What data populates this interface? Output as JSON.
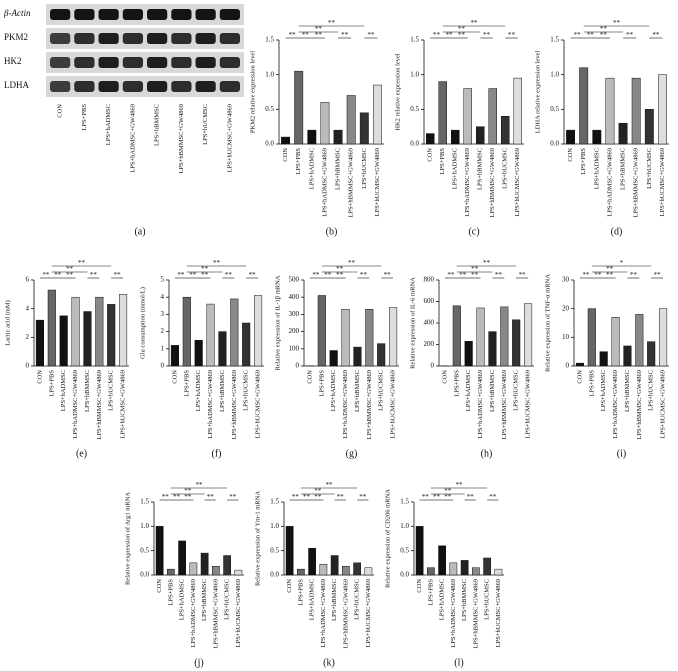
{
  "blot": {
    "panel": "(a)",
    "rows": [
      "β-Actin",
      "PKM2",
      "HK2",
      "LDHA"
    ],
    "lanes": [
      "CON",
      "LPS+PBS",
      "LPS+hADMSC",
      "LPS+hADMSC+GW4869",
      "LPS+hBMMSC",
      "LPS+hBMMSC+GW4869",
      "LPS+hUCMSC",
      "LPS+hUCMSC+GW4869"
    ]
  },
  "chart_data": [
    {
      "type": "bar",
      "panel": "(b)",
      "y_label": "PKM2 relative expression level",
      "categories": [
        "CON",
        "LPS+PBS",
        "LPS+hADMSC",
        "LPS+hADMSC+GW4869",
        "LPS+hBMMSC",
        "LPS+hBMMSC+GW4869",
        "LPS+hUCMSC",
        "LPS+hUCMSC+GW4869"
      ],
      "values": [
        0.1,
        1.05,
        0.2,
        0.6,
        0.2,
        0.7,
        0.45,
        0.85
      ],
      "colors": [
        "#111111",
        "#666666",
        "#111111",
        "#bbbbbb",
        "#222222",
        "#888888",
        "#333333",
        "#dddddd"
      ],
      "ylim": [
        0,
        1.5
      ],
      "yticks": [
        {
          "value": 0,
          "label": "0.0"
        },
        0.5,
        {
          "value": 1,
          "label": "1.0"
        },
        1.5
      ],
      "brackets": [
        {
          "from": 0,
          "to": 1,
          "label": "**"
        },
        {
          "from": 1,
          "to": 2,
          "label": "**"
        },
        {
          "from": 2,
          "to": 3,
          "label": "**"
        },
        {
          "from": 1,
          "to": 4,
          "label": "**"
        },
        {
          "from": 4,
          "to": 5,
          "label": "**"
        },
        {
          "from": 1,
          "to": 6,
          "label": "**"
        },
        {
          "from": 6,
          "to": 7,
          "label": "**"
        }
      ]
    },
    {
      "type": "bar",
      "panel": "(c)",
      "y_label": "HK2 relative expression level",
      "categories": [
        "CON",
        "LPS+PBS",
        "LPS+hADMSC",
        "LPS+hADMSC+GW4869",
        "LPS+hBMMSC",
        "LPS+hBMMSC+GW4869",
        "LPS+hUCMSC",
        "LPS+hUCMSC+GW4869"
      ],
      "values": [
        0.15,
        0.9,
        0.2,
        0.8,
        0.25,
        0.8,
        0.4,
        0.95
      ],
      "colors": [
        "#111111",
        "#666666",
        "#111111",
        "#bbbbbb",
        "#222222",
        "#888888",
        "#333333",
        "#dddddd"
      ],
      "ylim": [
        0,
        1.5
      ],
      "yticks": [
        {
          "value": 0,
          "label": "0.0"
        },
        0.5,
        {
          "value": 1,
          "label": "1.0"
        },
        1.5
      ],
      "brackets": [
        {
          "from": 0,
          "to": 1,
          "label": "**"
        },
        {
          "from": 1,
          "to": 2,
          "label": "**"
        },
        {
          "from": 2,
          "to": 3,
          "label": "**"
        },
        {
          "from": 1,
          "to": 4,
          "label": "**"
        },
        {
          "from": 4,
          "to": 5,
          "label": "**"
        },
        {
          "from": 1,
          "to": 6,
          "label": "**"
        },
        {
          "from": 6,
          "to": 7,
          "label": "**"
        }
      ]
    },
    {
      "type": "bar",
      "panel": "(d)",
      "y_label": "LDHA relative expression level",
      "categories": [
        "CON",
        "LPS+PBS",
        "LPS+hADMSC",
        "LPS+hADMSC+GW4869",
        "LPS+hBMMSC",
        "LPS+hBMMSC+GW4869",
        "LPS+hUCMSC",
        "LPS+hUCMSC+GW4869"
      ],
      "values": [
        0.2,
        1.1,
        0.2,
        0.95,
        0.3,
        0.95,
        0.5,
        1.0
      ],
      "colors": [
        "#111111",
        "#666666",
        "#111111",
        "#bbbbbb",
        "#222222",
        "#888888",
        "#333333",
        "#dddddd"
      ],
      "ylim": [
        0,
        1.5
      ],
      "yticks": [
        {
          "value": 0,
          "label": "0.0"
        },
        0.5,
        {
          "value": 1,
          "label": "1.0"
        },
        1.5
      ],
      "brackets": [
        {
          "from": 0,
          "to": 1,
          "label": "**"
        },
        {
          "from": 1,
          "to": 2,
          "label": "**"
        },
        {
          "from": 2,
          "to": 3,
          "label": "**"
        },
        {
          "from": 1,
          "to": 4,
          "label": "**"
        },
        {
          "from": 4,
          "to": 5,
          "label": "**"
        },
        {
          "from": 1,
          "to": 6,
          "label": "**"
        },
        {
          "from": 6,
          "to": 7,
          "label": "**"
        }
      ]
    },
    {
      "type": "bar",
      "panel": "(e)",
      "y_label": "Lactic acid (mM)",
      "categories": [
        "CON",
        "LPS+PBS",
        "LPS+hADMSC",
        "LPS+hADMSC+GW4869",
        "LPS+hBMMSC",
        "LPS+hBMMSC+GW4869",
        "LPS+hUCMSC",
        "LPS+hUCMSC+GW4869"
      ],
      "values": [
        3.2,
        5.3,
        3.5,
        4.8,
        3.8,
        4.8,
        4.3,
        5.0
      ],
      "colors": [
        "#111111",
        "#666666",
        "#111111",
        "#bbbbbb",
        "#222222",
        "#888888",
        "#333333",
        "#dddddd"
      ],
      "ylim": [
        0,
        6
      ],
      "yticks": [
        0,
        2,
        4,
        6
      ],
      "brackets": [
        {
          "from": 0,
          "to": 1,
          "label": "**"
        },
        {
          "from": 1,
          "to": 2,
          "label": "**"
        },
        {
          "from": 2,
          "to": 3,
          "label": "**"
        },
        {
          "from": 1,
          "to": 4,
          "label": "**"
        },
        {
          "from": 4,
          "to": 5,
          "label": "**"
        },
        {
          "from": 1,
          "to": 6,
          "label": "**"
        },
        {
          "from": 6,
          "to": 7,
          "label": "**"
        }
      ]
    },
    {
      "type": "bar",
      "panel": "(f)",
      "y_label": "Glu consumption (mmol/L)",
      "categories": [
        "CON",
        "LPS+PBS",
        "LPS+hADMSC",
        "LPS+hADMSC+GW4869",
        "LPS+hBMMSC",
        "LPS+hBMMSC+GW4869",
        "LPS+hUCMSC",
        "LPS+hUCMSC+GW4869"
      ],
      "values": [
        1.2,
        4.0,
        1.5,
        3.6,
        2.0,
        3.9,
        2.5,
        4.1
      ],
      "colors": [
        "#111111",
        "#666666",
        "#111111",
        "#bbbbbb",
        "#222222",
        "#888888",
        "#333333",
        "#dddddd"
      ],
      "ylim": [
        0,
        5
      ],
      "yticks": [
        0,
        1,
        2,
        3,
        4,
        5
      ],
      "brackets": [
        {
          "from": 0,
          "to": 1,
          "label": "**"
        },
        {
          "from": 1,
          "to": 2,
          "label": "**"
        },
        {
          "from": 2,
          "to": 3,
          "label": "**"
        },
        {
          "from": 1,
          "to": 4,
          "label": "**"
        },
        {
          "from": 4,
          "to": 5,
          "label": "**"
        },
        {
          "from": 1,
          "to": 6,
          "label": "**"
        },
        {
          "from": 6,
          "to": 7,
          "label": "**"
        }
      ]
    },
    {
      "type": "bar",
      "panel": "(g)",
      "y_label": "Relative expression of IL-1β mRNA",
      "categories": [
        "CON",
        "LPS+PBS",
        "LPS+hADMSC",
        "LPS+hADMSC+GW4869",
        "LPS+hBMMSC",
        "LPS+hBMMSC+GW4869",
        "LPS+hUCMSC",
        "LPS+hUCMSC+GW4869"
      ],
      "values": [
        1,
        410,
        90,
        330,
        110,
        330,
        130,
        340
      ],
      "colors": [
        "#111111",
        "#666666",
        "#111111",
        "#bbbbbb",
        "#222222",
        "#888888",
        "#333333",
        "#dddddd"
      ],
      "ylim": [
        0,
        500
      ],
      "yticks": [
        0,
        100,
        200,
        300,
        400,
        500
      ],
      "brackets": [
        {
          "from": 0,
          "to": 1,
          "label": "**"
        },
        {
          "from": 1,
          "to": 2,
          "label": "**"
        },
        {
          "from": 2,
          "to": 3,
          "label": "**"
        },
        {
          "from": 1,
          "to": 4,
          "label": "**"
        },
        {
          "from": 4,
          "to": 5,
          "label": "**"
        },
        {
          "from": 1,
          "to": 6,
          "label": "**"
        },
        {
          "from": 6,
          "to": 7,
          "label": "**"
        }
      ]
    },
    {
      "type": "bar",
      "panel": "(h)",
      "y_label": "Relative expression of IL-6 mRNA",
      "categories": [
        "CON",
        "LPS+PBS",
        "LPS+hADMSC",
        "LPS+hADMSC+GW4869",
        "LPS+hBMMSC",
        "LPS+hBMMSC+GW4869",
        "LPS+hUCMSC",
        "LPS+hUCMSC+GW4869"
      ],
      "values": [
        1,
        560,
        230,
        540,
        320,
        550,
        430,
        580
      ],
      "colors": [
        "#111111",
        "#666666",
        "#111111",
        "#bbbbbb",
        "#222222",
        "#888888",
        "#333333",
        "#dddddd"
      ],
      "ylim": [
        0,
        800
      ],
      "yticks": [
        0,
        200,
        400,
        600,
        800
      ],
      "brackets": [
        {
          "from": 0,
          "to": 1,
          "label": "**"
        },
        {
          "from": 1,
          "to": 2,
          "label": "**"
        },
        {
          "from": 2,
          "to": 3,
          "label": "**"
        },
        {
          "from": 1,
          "to": 4,
          "label": "**"
        },
        {
          "from": 4,
          "to": 5,
          "label": "**"
        },
        {
          "from": 1,
          "to": 6,
          "label": "**"
        },
        {
          "from": 6,
          "to": 7,
          "label": "**"
        }
      ]
    },
    {
      "type": "bar",
      "panel": "(i)",
      "y_label": "Relative expression of TNF-α mRNA",
      "categories": [
        "CON",
        "LPS+PBS",
        "LPS+hADMSC",
        "LPS+hADMSC+GW4869",
        "LPS+hBMMSC",
        "LPS+hBMMSC+GW4869",
        "LPS+hUCMSC",
        "LPS+hUCMSC+GW4869"
      ],
      "values": [
        1,
        20,
        5,
        17,
        7,
        18,
        8.5,
        20
      ],
      "colors": [
        "#111111",
        "#666666",
        "#111111",
        "#bbbbbb",
        "#222222",
        "#888888",
        "#333333",
        "#dddddd"
      ],
      "ylim": [
        0,
        30
      ],
      "yticks": [
        0,
        10,
        20,
        30
      ],
      "brackets": [
        {
          "from": 0,
          "to": 1,
          "label": "**"
        },
        {
          "from": 1,
          "to": 2,
          "label": "**"
        },
        {
          "from": 2,
          "to": 3,
          "label": "**"
        },
        {
          "from": 1,
          "to": 4,
          "label": "**"
        },
        {
          "from": 4,
          "to": 5,
          "label": "**"
        },
        {
          "from": 1,
          "to": 6,
          "label": "*"
        },
        {
          "from": 6,
          "to": 7,
          "label": "**"
        }
      ]
    },
    {
      "type": "bar",
      "panel": "(j)",
      "y_label": "Relative expression of Arg1 mRNA",
      "categories": [
        "CON",
        "LPS+PBS",
        "LPS+hADMSC",
        "LPS+hADMSC+GW4869",
        "LPS+hBMMSC",
        "LPS+hBMMSC+GW4869",
        "LPS+hUCMSC",
        "LPS+hUCMSC+GW4869"
      ],
      "values": [
        1.0,
        0.12,
        0.7,
        0.25,
        0.45,
        0.18,
        0.4,
        0.1
      ],
      "colors": [
        "#111111",
        "#666666",
        "#111111",
        "#bbbbbb",
        "#222222",
        "#888888",
        "#333333",
        "#dddddd"
      ],
      "ylim": [
        0,
        1.5
      ],
      "yticks": [
        {
          "value": 0,
          "label": "0.0"
        },
        0.5,
        {
          "value": 1,
          "label": "1.0"
        },
        1.5
      ],
      "brackets": [
        {
          "from": 0,
          "to": 1,
          "label": "**"
        },
        {
          "from": 1,
          "to": 2,
          "label": "**"
        },
        {
          "from": 2,
          "to": 3,
          "label": "**"
        },
        {
          "from": 1,
          "to": 4,
          "label": "**"
        },
        {
          "from": 4,
          "to": 5,
          "label": "**"
        },
        {
          "from": 1,
          "to": 6,
          "label": "**"
        },
        {
          "from": 6,
          "to": 7,
          "label": "**"
        }
      ]
    },
    {
      "type": "bar",
      "panel": "(k)",
      "y_label": "Relative expression of Ym-1 mRNA",
      "categories": [
        "CON",
        "LPS+PBS",
        "LPS+hADMSC",
        "LPS+hADMSC+GW4869",
        "LPS+hBMMSC",
        "LPS+hBMMSC+GW4869",
        "LPS+hUCMSC",
        "LPS+hUCMSC+GW4869"
      ],
      "values": [
        1.0,
        0.12,
        0.55,
        0.22,
        0.4,
        0.18,
        0.25,
        0.15
      ],
      "colors": [
        "#111111",
        "#666666",
        "#111111",
        "#bbbbbb",
        "#222222",
        "#888888",
        "#333333",
        "#dddddd"
      ],
      "ylim": [
        0,
        1.5
      ],
      "yticks": [
        {
          "value": 0,
          "label": "0.0"
        },
        0.5,
        {
          "value": 1,
          "label": "1.0"
        },
        1.5
      ],
      "brackets": [
        {
          "from": 0,
          "to": 1,
          "label": "**"
        },
        {
          "from": 1,
          "to": 2,
          "label": "**"
        },
        {
          "from": 2,
          "to": 3,
          "label": "**"
        },
        {
          "from": 1,
          "to": 4,
          "label": "**"
        },
        {
          "from": 4,
          "to": 5,
          "label": "**"
        },
        {
          "from": 1,
          "to": 6,
          "label": "**"
        },
        {
          "from": 6,
          "to": 7,
          "label": "**"
        }
      ]
    },
    {
      "type": "bar",
      "panel": "(l)",
      "y_label": "Relative expression of CD206 mRNA",
      "categories": [
        "CON",
        "LPS+PBS",
        "LPS+hADMSC",
        "LPS+hADMSC+GW4869",
        "LPS+hBMMSC",
        "LPS+hBMMSC+GW4869",
        "LPS+hUCMSC",
        "LPS+hUCMSC+GW4869"
      ],
      "values": [
        1.0,
        0.15,
        0.6,
        0.25,
        0.3,
        0.15,
        0.35,
        0.12
      ],
      "colors": [
        "#111111",
        "#666666",
        "#111111",
        "#bbbbbb",
        "#222222",
        "#888888",
        "#333333",
        "#dddddd"
      ],
      "ylim": [
        0,
        1.5
      ],
      "yticks": [
        {
          "value": 0,
          "label": "0.0"
        },
        0.5,
        {
          "value": 1,
          "label": "1.0"
        },
        1.5
      ],
      "brackets": [
        {
          "from": 0,
          "to": 1,
          "label": "**"
        },
        {
          "from": 1,
          "to": 2,
          "label": "**"
        },
        {
          "from": 2,
          "to": 3,
          "label": "**"
        },
        {
          "from": 1,
          "to": 4,
          "label": "**"
        },
        {
          "from": 4,
          "to": 5,
          "label": "**"
        },
        {
          "from": 1,
          "to": 6,
          "label": "**"
        },
        {
          "from": 6,
          "to": 7,
          "label": "**"
        }
      ]
    }
  ]
}
